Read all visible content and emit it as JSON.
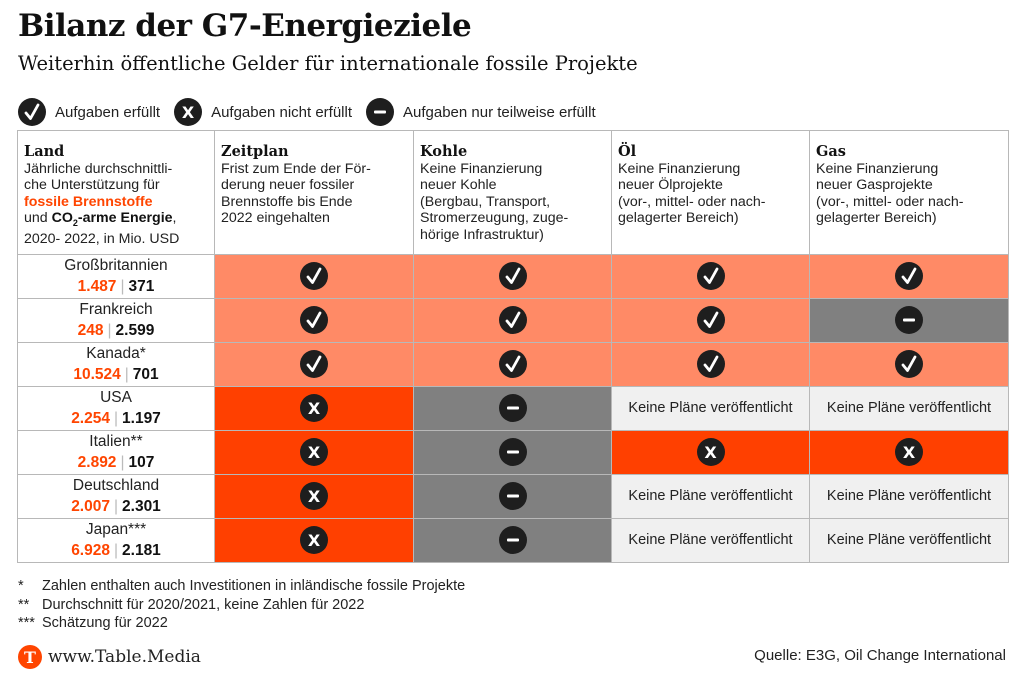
{
  "title": "Bilanz der G7-Energieziele",
  "subtitle": "Weiterhin öffentliche Gelder für internationale fossile Projekte",
  "legend": [
    {
      "status": "met",
      "icon": "check-icon",
      "label": "Aufgaben erfüllt"
    },
    {
      "status": "notmet",
      "icon": "x-icon",
      "label": "Aufgaben nicht erfüllt"
    },
    {
      "status": "partial",
      "icon": "minus-icon",
      "label": "Aufgaben nur teilweise erfüllt"
    }
  ],
  "colors": {
    "met": "#ff8a66",
    "notmet": "#ff4000",
    "partial": "#808080",
    "none": "#f0f0f0",
    "fossil": "#ff4500",
    "icon": "#1e1e1e"
  },
  "header": {
    "land": {
      "title": "Land",
      "line1": "Jährliche durchschnittli-",
      "line2": "che Unterstützung für",
      "fossil": "fossile Brennstoffe",
      "und": "und",
      "co2a": "CO",
      "co2sub": "2",
      "co2b": "-arme Energie",
      "comma": ",",
      "line5": "2020- 2022, in Mio. USD"
    },
    "columns": [
      {
        "title": "Zeitplan",
        "desc": [
          "Frist zum Ende der För-",
          "derung neuer fossiler",
          "Brennstoffe bis Ende",
          "2022 eingehalten"
        ]
      },
      {
        "title": "Kohle",
        "desc": [
          "Keine Finanzierung",
          "neuer Kohle",
          "(Bergbau, Transport,",
          "Stromerzeugung, zuge-",
          "hörige Infrastruktur)"
        ]
      },
      {
        "title": "Öl",
        "desc": [
          "Keine Finanzierung",
          "neuer Ölprojekte",
          "(vor-, mittel- oder nach-",
          "gelagerter Bereich)"
        ]
      },
      {
        "title": "Gas",
        "desc": [
          "Keine Finanzierung",
          "neuer Gasprojekte",
          "(vor-, mittel- oder nach-",
          "gelagerter Bereich)"
        ]
      }
    ]
  },
  "chart_data": {
    "type": "table",
    "title": "Bilanz der G7-Energieziele",
    "subtitle": "Weiterhin öffentliche Gelder für internationale fossile Projekte",
    "columns": [
      "Land",
      "Zeitplan",
      "Kohle",
      "Öl",
      "Gas"
    ],
    "none_text": "Keine Pläne veröffentlicht",
    "rows": [
      {
        "country": "Großbritannien",
        "fossil": "1.487",
        "low_co2": "371",
        "status": [
          "met",
          "met",
          "met",
          "met"
        ]
      },
      {
        "country": "Frankreich",
        "fossil": "248",
        "low_co2": "2.599",
        "status": [
          "met",
          "met",
          "met",
          "partial"
        ]
      },
      {
        "country": "Kanada*",
        "fossil": "10.524",
        "low_co2": "701",
        "status": [
          "met",
          "met",
          "met",
          "met"
        ]
      },
      {
        "country": "USA",
        "fossil": "2.254",
        "low_co2": "1.197",
        "status": [
          "notmet",
          "partial",
          "none",
          "none"
        ]
      },
      {
        "country": "Italien**",
        "fossil": "2.892",
        "low_co2": "107",
        "status": [
          "notmet",
          "partial",
          "notmet",
          "notmet"
        ]
      },
      {
        "country": "Deutschland",
        "fossil": "2.007",
        "low_co2": "2.301",
        "status": [
          "notmet",
          "partial",
          "none",
          "none"
        ]
      },
      {
        "country": "Japan***",
        "fossil": "6.928",
        "low_co2": "2.181",
        "status": [
          "notmet",
          "partial",
          "none",
          "none"
        ]
      }
    ]
  },
  "footnotes": [
    {
      "mark": "*",
      "text": "Zahlen enthalten auch Investitionen in inländische fossile Projekte"
    },
    {
      "mark": "**",
      "text": "Durchschnitt für 2020/2021, keine Zahlen für 2022"
    },
    {
      "mark": "***",
      "text": "Schätzung für 2022"
    }
  ],
  "brand": {
    "logo_letter": "T",
    "url": "www.Table.Media"
  },
  "source": "Quelle: E3G, Oil Change International"
}
